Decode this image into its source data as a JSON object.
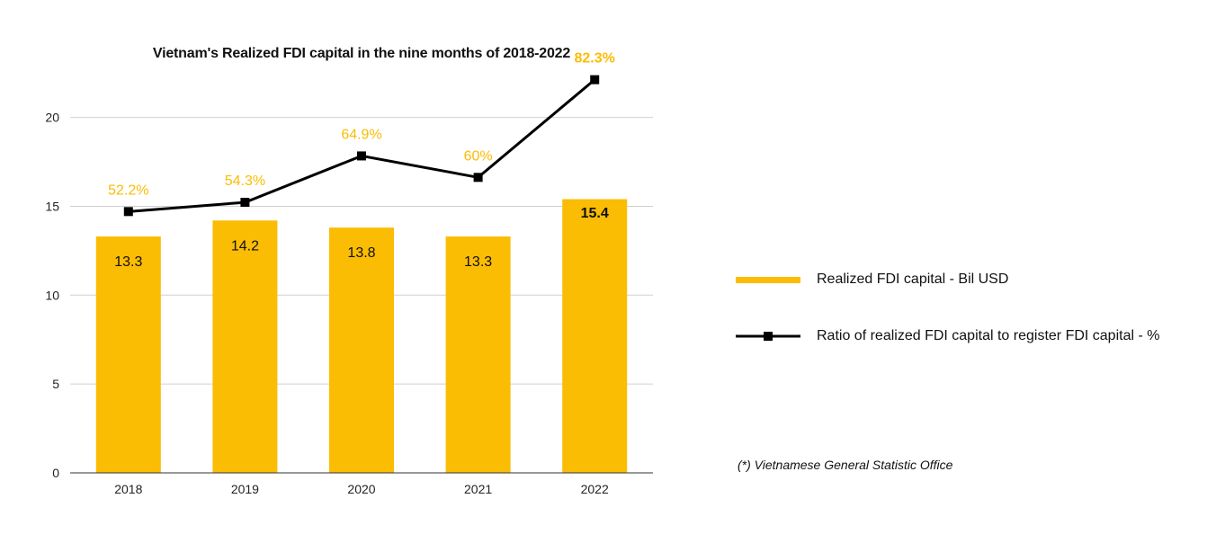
{
  "chart_data": {
    "type": "bar",
    "title": "Vietnam's Realized FDI capital in the nine months of 2018-2022",
    "categories": [
      "2018",
      "2019",
      "2020",
      "2021",
      "2022"
    ],
    "series": [
      {
        "name": "Realized FDI capital - Bil USD",
        "kind": "bar",
        "values": [
          13.3,
          14.2,
          13.8,
          13.3,
          15.4
        ],
        "labels": [
          "13.3",
          "14.2",
          "13.8",
          "13.3",
          "15.4"
        ],
        "color": "#FBBC04"
      },
      {
        "name": "Ratio of realized FDI capital to register FDI capital - %",
        "kind": "line",
        "values": [
          52.2,
          54.3,
          64.9,
          60,
          82.3
        ],
        "labels": [
          "52.2%",
          "54.3%",
          "64.9%",
          "60%",
          "82.3%"
        ],
        "color": "#000000",
        "label_color": "#FBBC04"
      }
    ],
    "y_ticks": [
      "0",
      "5",
      "10",
      "15",
      "20"
    ],
    "ylim": [
      0,
      21.8
    ],
    "grid": true,
    "legend": "right",
    "note": "(*) Vietnamese General Statistic Office"
  }
}
